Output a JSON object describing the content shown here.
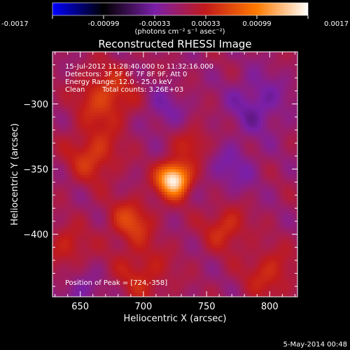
{
  "colorbar": {
    "ticks": [
      "-0.0017",
      "-0.00099",
      "-0.00033",
      "0.00033",
      "0.00099",
      "0.0017"
    ],
    "units": "(photons cm⁻² s⁻¹ asec⁻²)",
    "range": [
      -0.0017,
      0.0017
    ],
    "colormap": [
      "#0000ff",
      "#000000",
      "#7a1fa8",
      "#c21a1a",
      "#ff7a00",
      "#ffffff"
    ]
  },
  "image_title": "Reconstructed RHESSI Image",
  "info": {
    "time_range": "15-Jul-2012 11:28:40.000 to 11:32:16.000",
    "detectors": "Detectors: 3F 5F 6F 7F 8F 9F, Att 0",
    "energy_range": "Energy Range: 12.0 - 25.0 keV",
    "method": "Clean",
    "total_counts": "Total counts: 3.26E+03",
    "peak": "Position of Peak = [724,-358]"
  },
  "footer_date": "5-May-2014 00:48",
  "chart_data": {
    "type": "heatmap",
    "title": "Reconstructed RHESSI Image",
    "xlabel": "Heliocentric X (arcsec)",
    "ylabel": "Heliocentric Y (arcsec)",
    "xlim": [
      628,
      822
    ],
    "ylim": [
      -448,
      -260
    ],
    "xticks": [
      650,
      700,
      750,
      800
    ],
    "yticks": [
      -300,
      -350,
      -400
    ],
    "peak": {
      "x": 724,
      "y": -358,
      "value": 0.0017
    },
    "sources": [
      {
        "x": 724,
        "y": -358,
        "value": 0.0017,
        "sigma": 9
      },
      {
        "x": 670,
        "y": -295,
        "value": 0.0006,
        "sigma": 16
      },
      {
        "x": 660,
        "y": -340,
        "value": 0.00055,
        "sigma": 14
      },
      {
        "x": 690,
        "y": -390,
        "value": 0.0006,
        "sigma": 12
      },
      {
        "x": 765,
        "y": -395,
        "value": 0.0005,
        "sigma": 12
      },
      {
        "x": 740,
        "y": -330,
        "value": 0.0004,
        "sigma": 10
      },
      {
        "x": 700,
        "y": -430,
        "value": 0.0004,
        "sigma": 16
      },
      {
        "x": 800,
        "y": -430,
        "value": 0.00045,
        "sigma": 14
      },
      {
        "x": 640,
        "y": -410,
        "value": 0.0004,
        "sigma": 12
      },
      {
        "x": 790,
        "y": -300,
        "value": -0.0004,
        "sigma": 16
      },
      {
        "x": 715,
        "y": -305,
        "value": -0.0003,
        "sigma": 12
      },
      {
        "x": 770,
        "y": -350,
        "value": -0.0003,
        "sigma": 14
      },
      {
        "x": 650,
        "y": -445,
        "value": -0.0003,
        "sigma": 12
      }
    ]
  }
}
